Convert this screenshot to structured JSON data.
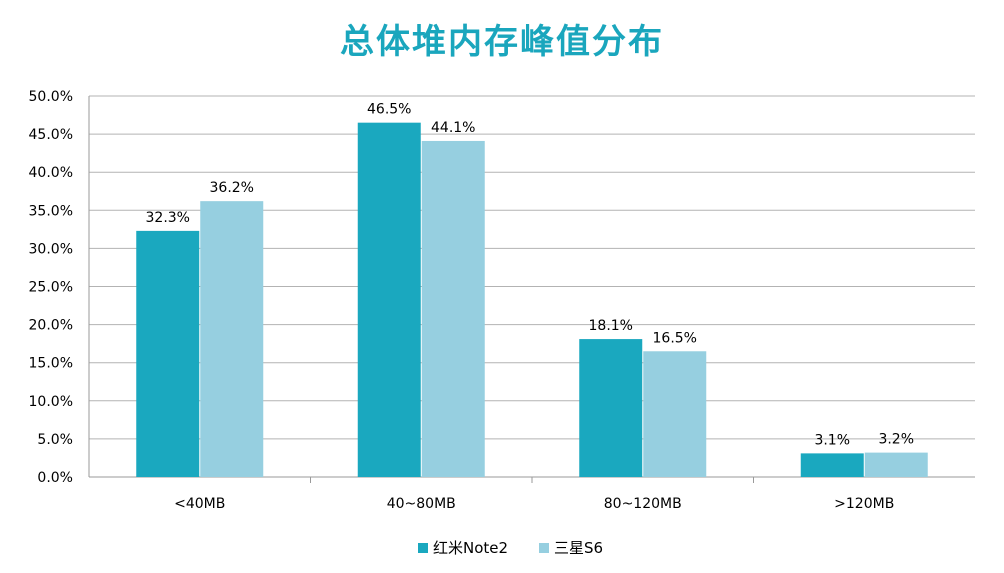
{
  "chart_data": {
    "type": "bar",
    "title": "总体堆内存峰值分布",
    "categories": [
      "<40MB",
      "40~80MB",
      "80~120MB",
      ">120MB"
    ],
    "series": [
      {
        "name": "红米Note2",
        "color": "#1aa8bf",
        "values": [
          32.3,
          46.5,
          18.1,
          3.1
        ],
        "labels": [
          "32.3%",
          "46.5%",
          "18.1%",
          "3.1%"
        ]
      },
      {
        "name": "三星S6",
        "color": "#96cfe0",
        "values": [
          36.2,
          44.1,
          16.5,
          3.2
        ],
        "labels": [
          "36.2%",
          "44.1%",
          "16.5%",
          "3.2%"
        ]
      }
    ],
    "ylim": [
      0,
      50
    ],
    "yticks": [
      0,
      5,
      10,
      15,
      20,
      25,
      30,
      35,
      40,
      45,
      50
    ],
    "ytick_labels": [
      "0.0%",
      "5.0%",
      "10.0%",
      "15.0%",
      "20.0%",
      "25.0%",
      "30.0%",
      "35.0%",
      "40.0%",
      "45.0%",
      "50.0%"
    ],
    "grid": true,
    "legend_position": "bottom-center",
    "xlabel": "",
    "ylabel": ""
  }
}
